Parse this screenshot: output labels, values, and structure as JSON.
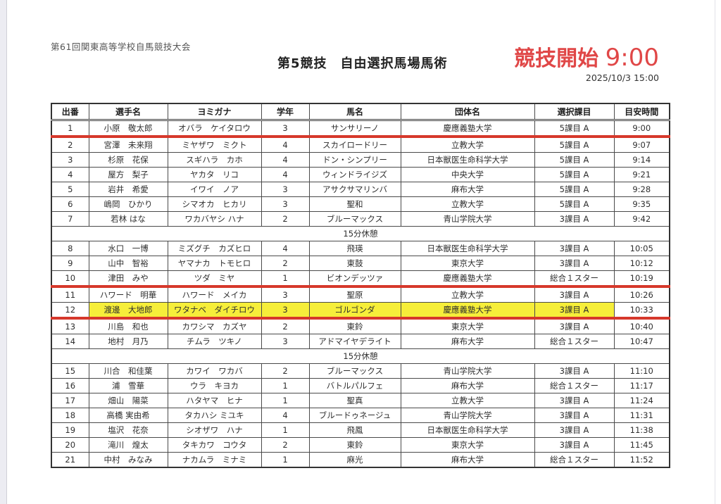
{
  "colors": {
    "accent_red_text": "#e04747",
    "line_red": "#d6382b",
    "highlight_yellow": "#f6ee3a",
    "border_dark": "#3c3c3c"
  },
  "header": {
    "event_title": "第61回関東高等学校自馬競技大会",
    "competition_title": "第5競技　自由選択馬場馬術",
    "start_label": "競技開始",
    "start_time": "9:00",
    "printed_at": "2025/10/3 15:00"
  },
  "table": {
    "columns": [
      "出番",
      "選手名",
      "ヨミガナ",
      "学年",
      "馬名",
      "団体名",
      "選択課目",
      "目安時間"
    ],
    "break_label": "15分休憩",
    "entries": [
      {
        "no": "1",
        "name": "小原　敬太郎",
        "kana": "オバラ　ケイタロウ",
        "grade": "3",
        "horse": "サンサリーノ",
        "team": "慶應義塾大学",
        "test": "5課目 A",
        "time": "9:00",
        "red_line": true
      },
      {
        "no": "2",
        "name": "宮澤　未来翔",
        "kana": "ミヤザワ　ミクト",
        "grade": "4",
        "horse": "スカイロードリー",
        "team": "立教大学",
        "test": "5課目 A",
        "time": "9:07"
      },
      {
        "no": "3",
        "name": "杉原　花保",
        "kana": "スギハラ　カホ",
        "grade": "4",
        "horse": "ドン・シンプリー",
        "team": "日本獣医生命科学大学",
        "test": "5課目 A",
        "time": "9:14"
      },
      {
        "no": "4",
        "name": "屋方　梨子",
        "kana": "ヤカタ　リコ",
        "grade": "4",
        "horse": "ウィンドライジズ",
        "team": "中央大学",
        "test": "5課目 A",
        "time": "9:21"
      },
      {
        "no": "5",
        "name": "岩井　希愛",
        "kana": "イワイ　ノア",
        "grade": "3",
        "horse": "アサクサマリンバ",
        "team": "麻布大学",
        "test": "5課目 A",
        "time": "9:28"
      },
      {
        "no": "6",
        "name": "嶋岡　ひかり",
        "kana": "シマオカ　ヒカリ",
        "grade": "3",
        "horse": "聖和",
        "team": "立教大学",
        "test": "5課目 A",
        "time": "9:35"
      },
      {
        "no": "7",
        "name": "若林 はな",
        "kana": "ワカバヤシ ハナ",
        "grade": "2",
        "horse": "ブルーマックス",
        "team": "青山学院大学",
        "test": "3課目 A",
        "time": "9:42"
      },
      {
        "break": true
      },
      {
        "no": "8",
        "name": "水口　一博",
        "kana": "ミズグチ　カズヒロ",
        "grade": "4",
        "horse": "飛瑛",
        "team": "日本獣医生命科学大学",
        "test": "3課目 A",
        "time": "10:05"
      },
      {
        "no": "9",
        "name": "山中　智裕",
        "kana": "ヤマナカ　トモヒロ",
        "grade": "2",
        "horse": "東鼓",
        "team": "東京大学",
        "test": "3課目 A",
        "time": "10:12"
      },
      {
        "no": "10",
        "name": "津田　みや",
        "kana": "ツダ　ミヤ",
        "grade": "1",
        "horse": "ビオンデッツァ",
        "team": "慶應義塾大学",
        "test": "総合１スター",
        "time": "10:19",
        "red_line": true
      },
      {
        "no": "11",
        "name": "ハワード　明華",
        "kana": "ハワード　メイカ",
        "grade": "3",
        "horse": "聖原",
        "team": "立教大学",
        "test": "3課目 A",
        "time": "10:26"
      },
      {
        "no": "12",
        "name": "渡邊　大地郎",
        "kana": "ワタナベ　ダイチロウ",
        "grade": "3",
        "horse": "ゴルゴンダ",
        "team": "慶應義塾大学",
        "test": "3課目 A",
        "time": "10:33",
        "highlight": true,
        "red_line": true
      },
      {
        "no": "13",
        "name": "川島　和也",
        "kana": "カワシマ　カズヤ",
        "grade": "2",
        "horse": "東鈴",
        "team": "東京大学",
        "test": "3課目 A",
        "time": "10:40"
      },
      {
        "no": "14",
        "name": "地村　月乃",
        "kana": "チムラ　ツキノ",
        "grade": "3",
        "horse": "アドマイヤデライト",
        "team": "麻布大学",
        "test": "総合１スター",
        "time": "10:47"
      },
      {
        "break": true
      },
      {
        "no": "15",
        "name": "川合　和佳葉",
        "kana": "カワイ　ワカバ",
        "grade": "2",
        "horse": "ブルーマックス",
        "team": "青山学院大学",
        "test": "3課目 A",
        "time": "11:10"
      },
      {
        "no": "16",
        "name": "浦　雪華",
        "kana": "ウラ　キヨカ",
        "grade": "1",
        "horse": "バトルパルフェ",
        "team": "麻布大学",
        "test": "総合１スター",
        "time": "11:17"
      },
      {
        "no": "17",
        "name": "畑山　陽菜",
        "kana": "ハタヤマ　ヒナ",
        "grade": "1",
        "horse": "聖真",
        "team": "立教大学",
        "test": "3課目 A",
        "time": "11:24"
      },
      {
        "no": "18",
        "name": "高橋 実由希",
        "kana": "タカハシ ミユキ",
        "grade": "4",
        "horse": "ブルードゥネージュ",
        "team": "青山学院大学",
        "test": "3課目 A",
        "time": "11:31"
      },
      {
        "no": "19",
        "name": "塩沢　花奈",
        "kana": "シオザワ　ハナ",
        "grade": "1",
        "horse": "飛鳳",
        "team": "日本獣医生命科学大学",
        "test": "3課目 A",
        "time": "11:38"
      },
      {
        "no": "20",
        "name": "滝川　煌太",
        "kana": "タキカワ　コウタ",
        "grade": "2",
        "horse": "東鈴",
        "team": "東京大学",
        "test": "3課目 A",
        "time": "11:45"
      },
      {
        "no": "21",
        "name": "中村　みなみ",
        "kana": "ナカムラ　ミナミ",
        "grade": "1",
        "horse": "麻光",
        "team": "麻布大学",
        "test": "総合１スター",
        "time": "11:52"
      }
    ]
  }
}
